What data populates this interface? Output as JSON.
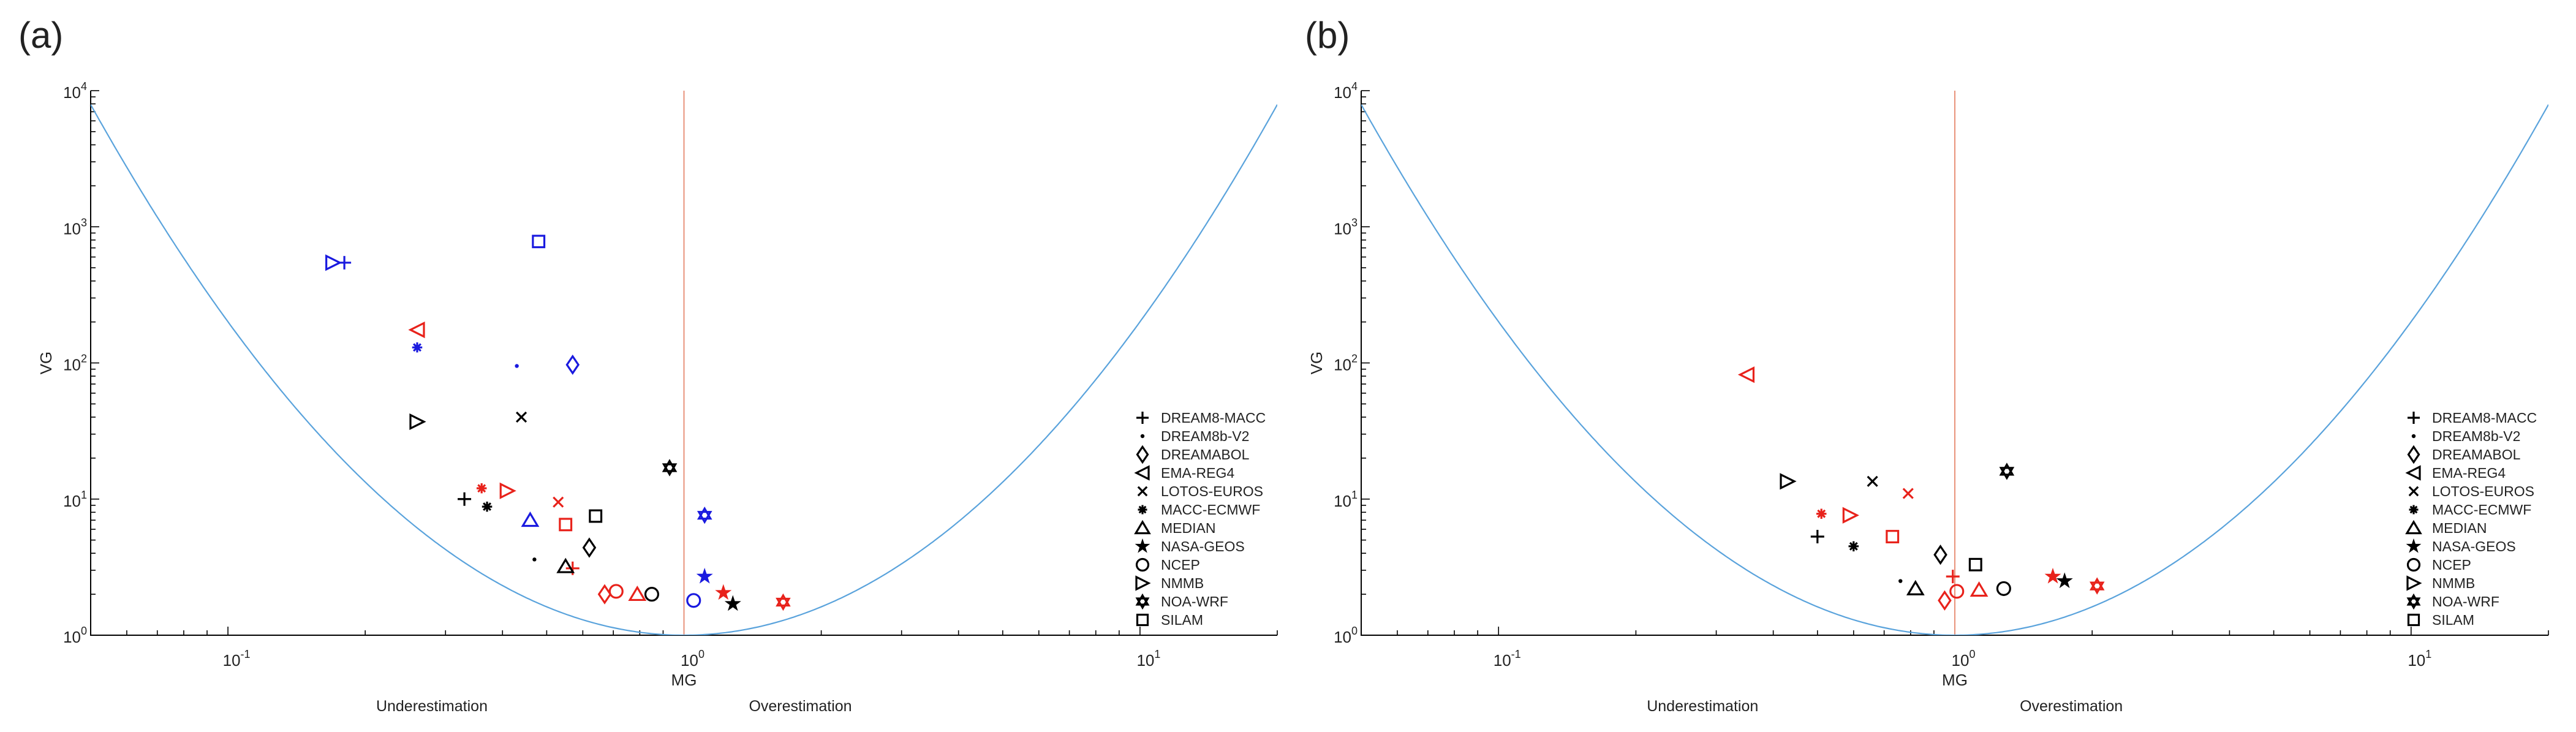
{
  "legend_labels": [
    "DREAM8-MACC",
    "DREAM8b-V2",
    "DREAMABOL",
    "EMA-REG4",
    "LOTOS-EUROS",
    "MACC-ECMWF",
    "MEDIAN",
    "NASA-GEOS",
    "NCEP",
    "NMMB",
    "NOA-WRF",
    "SILAM"
  ],
  "legend_markers": [
    "plus",
    "dot",
    "diamond",
    "triangle-left",
    "x",
    "asterisk",
    "triangle-up",
    "star",
    "circle",
    "triangle-right",
    "hexagram",
    "square"
  ],
  "colors": {
    "black": "#000000",
    "red": "#e8221b",
    "blue": "#1a1adf",
    "curve": "#5aa3dc",
    "midline": "#e8927a"
  },
  "chart_data": [
    {
      "type": "scatter",
      "panel_label": "(a)",
      "xlabel": "MG",
      "ylabel": "VG",
      "x_scale": "log",
      "y_scale": "log",
      "xlim": [
        0.05,
        20
      ],
      "ylim": [
        1,
        10000
      ],
      "x_tick_labels": [
        "10^-1",
        "10^0",
        "10^1"
      ],
      "y_tick_labels": [
        "10^0",
        "10^1",
        "10^2",
        "10^3",
        "10^4"
      ],
      "under_label": "Underestimation",
      "over_label": "Overestimation",
      "legend_position": "right",
      "reference_curve": "VG = exp((ln MG)^2)",
      "reference_line_x": 1,
      "points": [
        {
          "series": "DREAM8-MACC",
          "marker": "plus",
          "color": "blue",
          "x": 0.18,
          "y": 545
        },
        {
          "series": "DREAM8-MACC",
          "marker": "plus",
          "color": "black",
          "x": 0.33,
          "y": 10
        },
        {
          "series": "DREAM8-MACC",
          "marker": "plus",
          "color": "red",
          "x": 0.57,
          "y": 3.1
        },
        {
          "series": "DREAM8b-V2",
          "marker": "dot",
          "color": "blue",
          "x": 0.43,
          "y": 95
        },
        {
          "series": "DREAM8b-V2",
          "marker": "dot",
          "color": "black",
          "x": 0.47,
          "y": 3.6
        },
        {
          "series": "DREAMABOL",
          "marker": "diamond",
          "color": "blue",
          "x": 0.57,
          "y": 97
        },
        {
          "series": "DREAMABOL",
          "marker": "diamond",
          "color": "black",
          "x": 0.62,
          "y": 4.4
        },
        {
          "series": "DREAMABOL",
          "marker": "diamond",
          "color": "red",
          "x": 0.67,
          "y": 2.0
        },
        {
          "series": "EMA-REG4",
          "marker": "triangle-left",
          "color": "red",
          "x": 0.26,
          "y": 175
        },
        {
          "series": "LOTOS-EUROS",
          "marker": "x",
          "color": "black",
          "x": 0.44,
          "y": 40
        },
        {
          "series": "LOTOS-EUROS",
          "marker": "x",
          "color": "red",
          "x": 0.53,
          "y": 9.5
        },
        {
          "series": "MACC-ECMWF",
          "marker": "asterisk",
          "color": "blue",
          "x": 0.26,
          "y": 130
        },
        {
          "series": "MACC-ECMWF",
          "marker": "asterisk",
          "color": "red",
          "x": 0.36,
          "y": 12
        },
        {
          "series": "MACC-ECMWF",
          "marker": "asterisk",
          "color": "black",
          "x": 0.37,
          "y": 8.8
        },
        {
          "series": "MEDIAN",
          "marker": "triangle-up",
          "color": "blue",
          "x": 0.46,
          "y": 7.0
        },
        {
          "series": "MEDIAN",
          "marker": "triangle-up",
          "color": "black",
          "x": 0.55,
          "y": 3.2
        },
        {
          "series": "MEDIAN",
          "marker": "triangle-up",
          "color": "red",
          "x": 0.79,
          "y": 2.0
        },
        {
          "series": "NASA-GEOS",
          "marker": "star",
          "color": "blue",
          "x": 1.11,
          "y": 2.7
        },
        {
          "series": "NASA-GEOS",
          "marker": "star",
          "color": "red",
          "x": 1.22,
          "y": 2.05
        },
        {
          "series": "NASA-GEOS",
          "marker": "star",
          "color": "black",
          "x": 1.28,
          "y": 1.7
        },
        {
          "series": "NCEP",
          "marker": "circle",
          "color": "red",
          "x": 0.71,
          "y": 2.1
        },
        {
          "series": "NCEP",
          "marker": "circle",
          "color": "black",
          "x": 0.85,
          "y": 2.0
        },
        {
          "series": "NCEP",
          "marker": "circle",
          "color": "blue",
          "x": 1.05,
          "y": 1.8
        },
        {
          "series": "NMMB",
          "marker": "triangle-right",
          "color": "blue",
          "x": 0.17,
          "y": 545
        },
        {
          "series": "NMMB",
          "marker": "triangle-right",
          "color": "black",
          "x": 0.26,
          "y": 37
        },
        {
          "series": "NMMB",
          "marker": "triangle-right",
          "color": "red",
          "x": 0.41,
          "y": 11.5
        },
        {
          "series": "NOA-WRF",
          "marker": "hexagram",
          "color": "black",
          "x": 0.93,
          "y": 17
        },
        {
          "series": "NOA-WRF",
          "marker": "hexagram",
          "color": "blue",
          "x": 1.11,
          "y": 7.6
        },
        {
          "series": "NOA-WRF",
          "marker": "hexagram",
          "color": "red",
          "x": 1.65,
          "y": 1.75
        },
        {
          "series": "SILAM",
          "marker": "square",
          "color": "blue",
          "x": 0.48,
          "y": 780
        },
        {
          "series": "SILAM",
          "marker": "square",
          "color": "black",
          "x": 0.64,
          "y": 7.5
        },
        {
          "series": "SILAM",
          "marker": "square",
          "color": "red",
          "x": 0.55,
          "y": 6.5
        }
      ]
    },
    {
      "type": "scatter",
      "panel_label": "(b)",
      "xlabel": "MG",
      "ylabel": "VG",
      "x_scale": "log",
      "y_scale": "log",
      "xlim": [
        0.05,
        20
      ],
      "ylim": [
        1,
        10000
      ],
      "x_tick_labels": [
        "10^-1",
        "10^0",
        "10^1"
      ],
      "y_tick_labels": [
        "10^0",
        "10^1",
        "10^2",
        "10^3",
        "10^4"
      ],
      "under_label": "Underestimation",
      "over_label": "Overestimation",
      "legend_position": "right",
      "reference_curve": "VG = exp((ln MG)^2)",
      "reference_line_x": 1,
      "points": [
        {
          "series": "DREAM8-MACC",
          "marker": "plus",
          "color": "black",
          "x": 0.5,
          "y": 5.3
        },
        {
          "series": "DREAM8-MACC",
          "marker": "plus",
          "color": "red",
          "x": 0.99,
          "y": 2.7
        },
        {
          "series": "DREAM8b-V2",
          "marker": "dot",
          "color": "black",
          "x": 0.76,
          "y": 2.5
        },
        {
          "series": "DREAMABOL",
          "marker": "diamond",
          "color": "black",
          "x": 0.93,
          "y": 3.9
        },
        {
          "series": "DREAMABOL",
          "marker": "diamond",
          "color": "red",
          "x": 0.95,
          "y": 1.8
        },
        {
          "series": "EMA-REG4",
          "marker": "triangle-left",
          "color": "red",
          "x": 0.35,
          "y": 82
        },
        {
          "series": "LOTOS-EUROS",
          "marker": "x",
          "color": "black",
          "x": 0.66,
          "y": 13.5
        },
        {
          "series": "LOTOS-EUROS",
          "marker": "x",
          "color": "red",
          "x": 0.79,
          "y": 11
        },
        {
          "series": "MACC-ECMWF",
          "marker": "asterisk",
          "color": "red",
          "x": 0.51,
          "y": 7.8
        },
        {
          "series": "MACC-ECMWF",
          "marker": "asterisk",
          "color": "black",
          "x": 0.6,
          "y": 4.5
        },
        {
          "series": "MEDIAN",
          "marker": "triangle-up",
          "color": "black",
          "x": 0.82,
          "y": 2.2
        },
        {
          "series": "MEDIAN",
          "marker": "triangle-up",
          "color": "red",
          "x": 1.13,
          "y": 2.15
        },
        {
          "series": "NASA-GEOS",
          "marker": "star",
          "color": "red",
          "x": 1.64,
          "y": 2.7
        },
        {
          "series": "NASA-GEOS",
          "marker": "star",
          "color": "black",
          "x": 1.74,
          "y": 2.5
        },
        {
          "series": "NCEP",
          "marker": "circle",
          "color": "red",
          "x": 1.01,
          "y": 2.1
        },
        {
          "series": "NCEP",
          "marker": "circle",
          "color": "black",
          "x": 1.28,
          "y": 2.2
        },
        {
          "series": "NMMB",
          "marker": "triangle-right",
          "color": "black",
          "x": 0.43,
          "y": 13.5
        },
        {
          "series": "NMMB",
          "marker": "triangle-right",
          "color": "red",
          "x": 0.59,
          "y": 7.6
        },
        {
          "series": "NOA-WRF",
          "marker": "hexagram",
          "color": "black",
          "x": 1.3,
          "y": 16
        },
        {
          "series": "NOA-WRF",
          "marker": "hexagram",
          "color": "red",
          "x": 2.05,
          "y": 2.3
        },
        {
          "series": "SILAM",
          "marker": "square",
          "color": "red",
          "x": 0.73,
          "y": 5.3
        },
        {
          "series": "SILAM",
          "marker": "square",
          "color": "black",
          "x": 1.11,
          "y": 3.3
        }
      ]
    }
  ]
}
